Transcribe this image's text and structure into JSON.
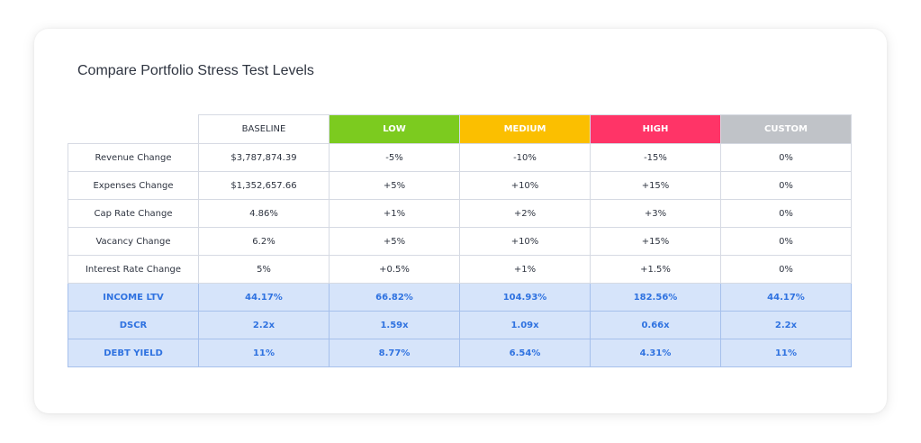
{
  "title": "Compare Portfolio Stress Test Levels",
  "columns": [
    {
      "label": "BASELINE",
      "color": "#ffffff"
    },
    {
      "label": "LOW",
      "color": "#7ccb1f"
    },
    {
      "label": "MEDIUM",
      "color": "#fbbf00"
    },
    {
      "label": "HIGH",
      "color": "#ff3467"
    },
    {
      "label": "CUSTOM",
      "color": "#c0c3c8"
    }
  ],
  "rows": [
    {
      "label": "Revenue Change",
      "values": [
        "$3,787,874.39",
        "-5%",
        "-10%",
        "-15%",
        "0%"
      ]
    },
    {
      "label": "Expenses Change",
      "values": [
        "$1,352,657.66",
        "+5%",
        "+10%",
        "+15%",
        "0%"
      ]
    },
    {
      "label": "Cap Rate Change",
      "values": [
        "4.86%",
        "+1%",
        "+2%",
        "+3%",
        "0%"
      ]
    },
    {
      "label": "Vacancy Change",
      "values": [
        "6.2%",
        "+5%",
        "+10%",
        "+15%",
        "0%"
      ]
    },
    {
      "label": "Interest Rate Change",
      "values": [
        "5%",
        "+0.5%",
        "+1%",
        "+1.5%",
        "0%"
      ]
    }
  ],
  "metrics": [
    {
      "label": "INCOME LTV",
      "values": [
        "44.17%",
        "66.82%",
        "104.93%",
        "182.56%",
        "44.17%"
      ]
    },
    {
      "label": "DSCR",
      "values": [
        "2.2x",
        "1.59x",
        "1.09x",
        "0.66x",
        "2.2x"
      ]
    },
    {
      "label": "DEBT YIELD",
      "values": [
        "11%",
        "8.77%",
        "6.54%",
        "4.31%",
        "11%"
      ]
    }
  ]
}
